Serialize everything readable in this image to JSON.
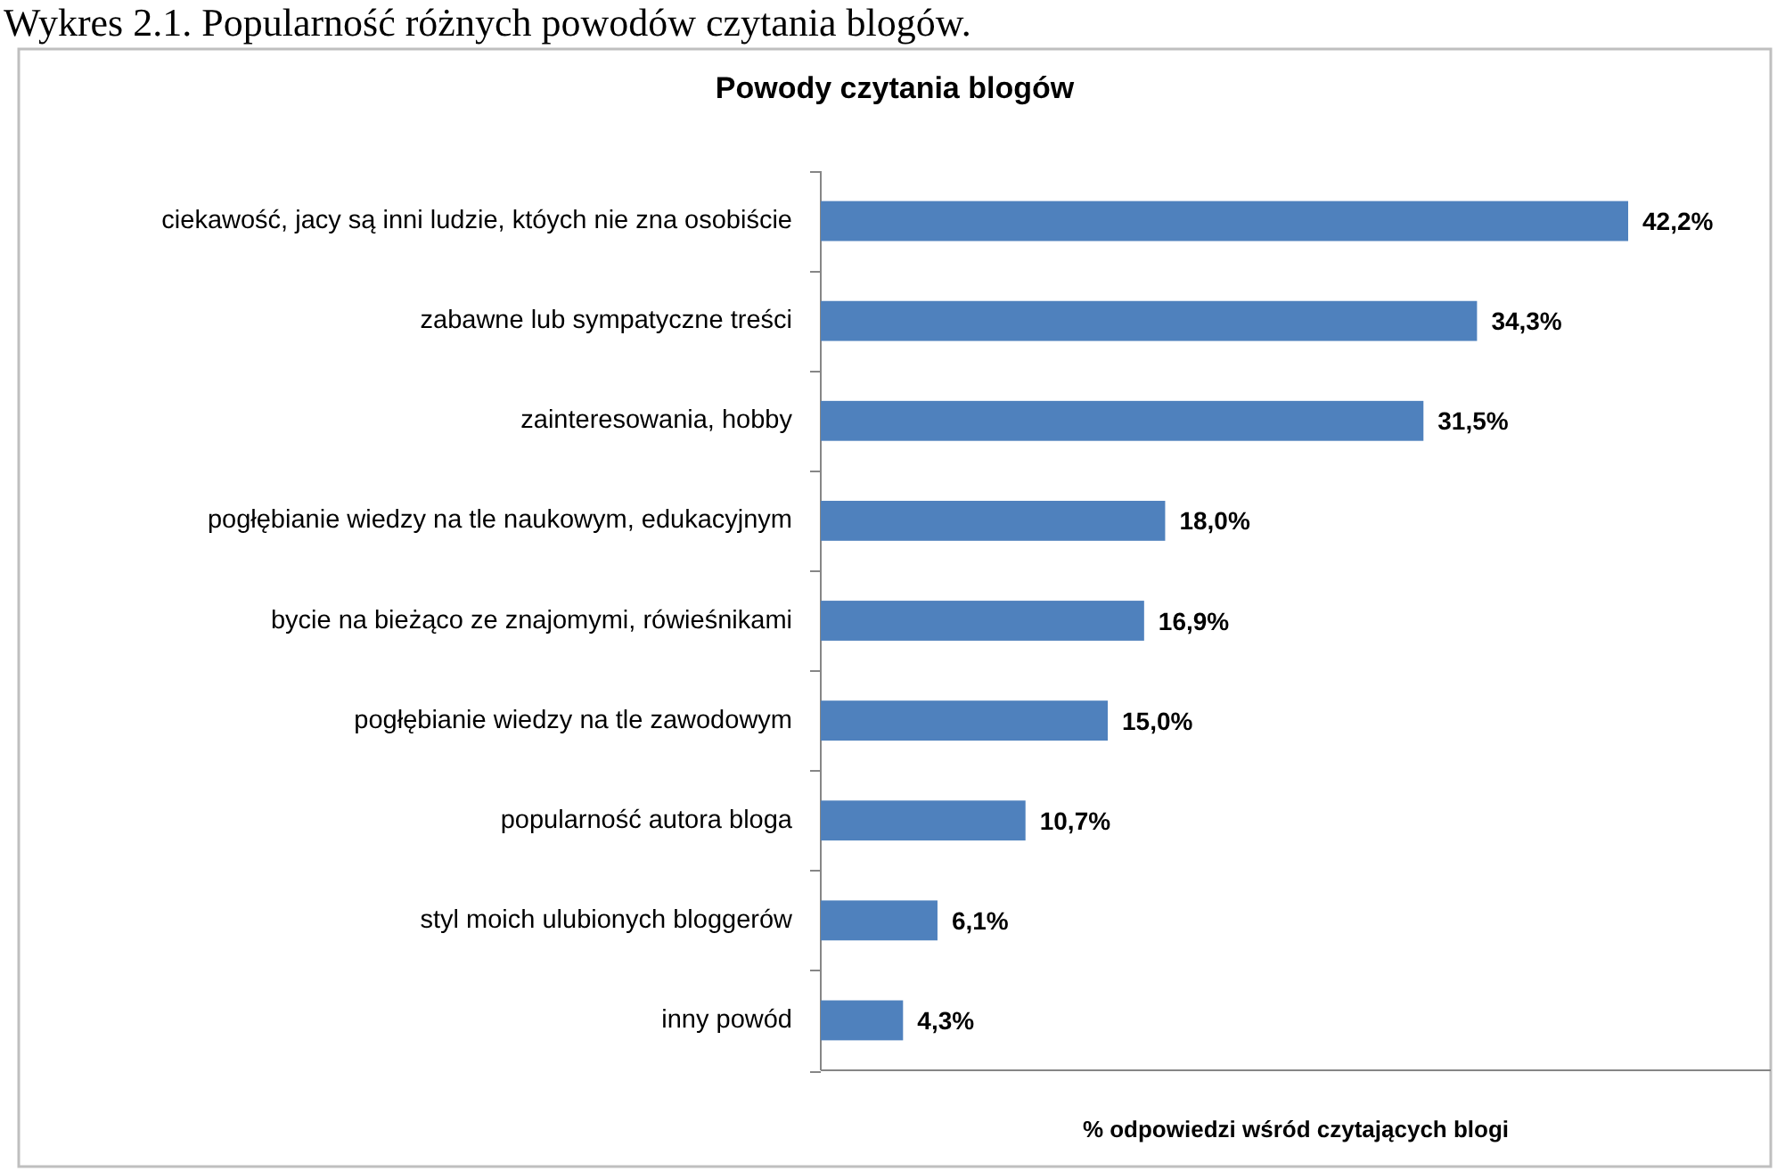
{
  "chart_data": {
    "type": "bar",
    "orientation": "horizontal",
    "title": "Powody czytania blogów",
    "xlabel": "% odpowiedzi wśród czytających blogi",
    "annotations": [
      "Wykres 2.1. Popularność różnych powodów czytania blogów."
    ],
    "categories": [
      "ciekawość, jacy są inni ludzie, któych nie zna osobiście",
      "zabawne lub sympatyczne treści",
      "zainteresowania, hobby",
      "pogłębianie wiedzy na tle naukowym, edukacyjnym",
      "bycie na bieżąco ze znajomymi, rówieśnikami",
      "pogłębianie wiedzy na tle zawodowym",
      "popularność autora bloga",
      "styl moich ulubionych bloggerów",
      "inny powód"
    ],
    "values": [
      42.2,
      34.3,
      31.5,
      18.0,
      16.9,
      15.0,
      10.7,
      6.1,
      4.3
    ],
    "value_labels": [
      "42,2%",
      "34,3%",
      "31,5%",
      "18,0%",
      "16,9%",
      "15,0%",
      "10,7%",
      "6,1%",
      "4,3%"
    ],
    "color": "#4f81bd",
    "tick_labels": "y"
  }
}
